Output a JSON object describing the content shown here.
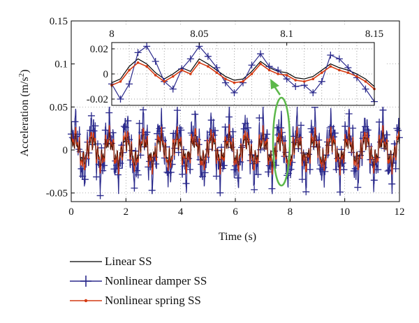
{
  "chart_data": [
    {
      "type": "line",
      "role": "main",
      "xlabel": "Time (s)",
      "ylabel": "Acceleration (m/s",
      "ylabel_sup": "2",
      "ylabel_close": ")",
      "xlim": [
        0,
        12
      ],
      "ylim": [
        -0.06,
        0.15
      ],
      "xticks": [
        "0",
        "2",
        "4",
        "6",
        "8",
        "10",
        "12"
      ],
      "yticks": [
        "-0.05",
        "0",
        "0.05",
        "0.1",
        "0.15"
      ],
      "ytick_values": [
        -0.05,
        0,
        0.05,
        0.1,
        0.15
      ],
      "grid": true,
      "series": [
        {
          "name": "Linear SS",
          "color": "#000000",
          "amplitude": 0.018
        },
        {
          "name": "Nonlinear damper SS",
          "color": "#2b2a8c",
          "marker": "plus",
          "amplitude": 0.045
        },
        {
          "name": "Nonlinear spring SS",
          "color": "#d43a12",
          "marker": "dot",
          "amplitude": 0.025
        }
      ],
      "annotation": "ellipse-and-arrow-near-t-7.7"
    },
    {
      "type": "line",
      "role": "inset",
      "xlim": [
        8,
        8.15
      ],
      "ylim": [
        -0.025,
        0.025
      ],
      "xticks": [
        "8",
        "8.05",
        "8.1",
        "8.15"
      ],
      "yticks": [
        "-0.02",
        "0",
        "0.02"
      ],
      "ytick_values": [
        -0.02,
        0,
        0.02
      ],
      "grid": true,
      "x": [
        8.0,
        8.005,
        8.01,
        8.015,
        8.02,
        8.025,
        8.03,
        8.035,
        8.04,
        8.045,
        8.05,
        8.055,
        8.06,
        8.065,
        8.07,
        8.075,
        8.08,
        8.085,
        8.09,
        8.095,
        8.1,
        8.105,
        8.11,
        8.115,
        8.12,
        8.125,
        8.13,
        8.135,
        8.14,
        8.145,
        8.15
      ],
      "series": [
        {
          "name": "Linear SS",
          "color": "#000000",
          "values": [
            -0.007,
            -0.004,
            0.006,
            0.012,
            0.008,
            0.001,
            -0.004,
            0.0,
            0.005,
            0.002,
            0.012,
            0.008,
            0.003,
            -0.002,
            -0.005,
            -0.004,
            0.002,
            0.01,
            0.005,
            0.002,
            0.001,
            -0.003,
            -0.004,
            -0.002,
            0.003,
            0.008,
            0.005,
            0.003,
            0.0,
            -0.004,
            -0.01
          ]
        },
        {
          "name": "Nonlinear damper SS",
          "color": "#2b2a8c",
          "marker": "plus",
          "values": [
            -0.008,
            -0.02,
            -0.008,
            0.017,
            0.022,
            0.01,
            -0.006,
            -0.012,
            0.004,
            0.012,
            0.022,
            0.014,
            0.005,
            -0.007,
            -0.015,
            -0.007,
            0.007,
            0.016,
            0.006,
            0.003,
            -0.004,
            -0.01,
            -0.009,
            -0.015,
            -0.006,
            0.015,
            0.012,
            0.005,
            -0.003,
            -0.012,
            -0.022
          ]
        },
        {
          "name": "Nonlinear spring SS",
          "color": "#d43a12",
          "marker": "dot",
          "values": [
            -0.009,
            -0.006,
            0.003,
            0.009,
            0.006,
            -0.001,
            -0.006,
            -0.002,
            0.003,
            0.0,
            0.009,
            0.006,
            0.001,
            -0.004,
            -0.007,
            -0.006,
            0.0,
            0.008,
            0.003,
            0.0,
            -0.001,
            -0.005,
            -0.006,
            -0.004,
            0.001,
            0.006,
            0.003,
            0.001,
            -0.002,
            -0.006,
            -0.012
          ]
        }
      ]
    }
  ],
  "legend": [
    {
      "label": "Linear SS",
      "color": "#000000",
      "marker": "none"
    },
    {
      "label": "Nonlinear damper SS",
      "color": "#2b2a8c",
      "marker": "plus"
    },
    {
      "label": "Nonlinear spring SS",
      "color": "#d43a12",
      "marker": "dot"
    }
  ],
  "annotation_color": "#5cb84a"
}
